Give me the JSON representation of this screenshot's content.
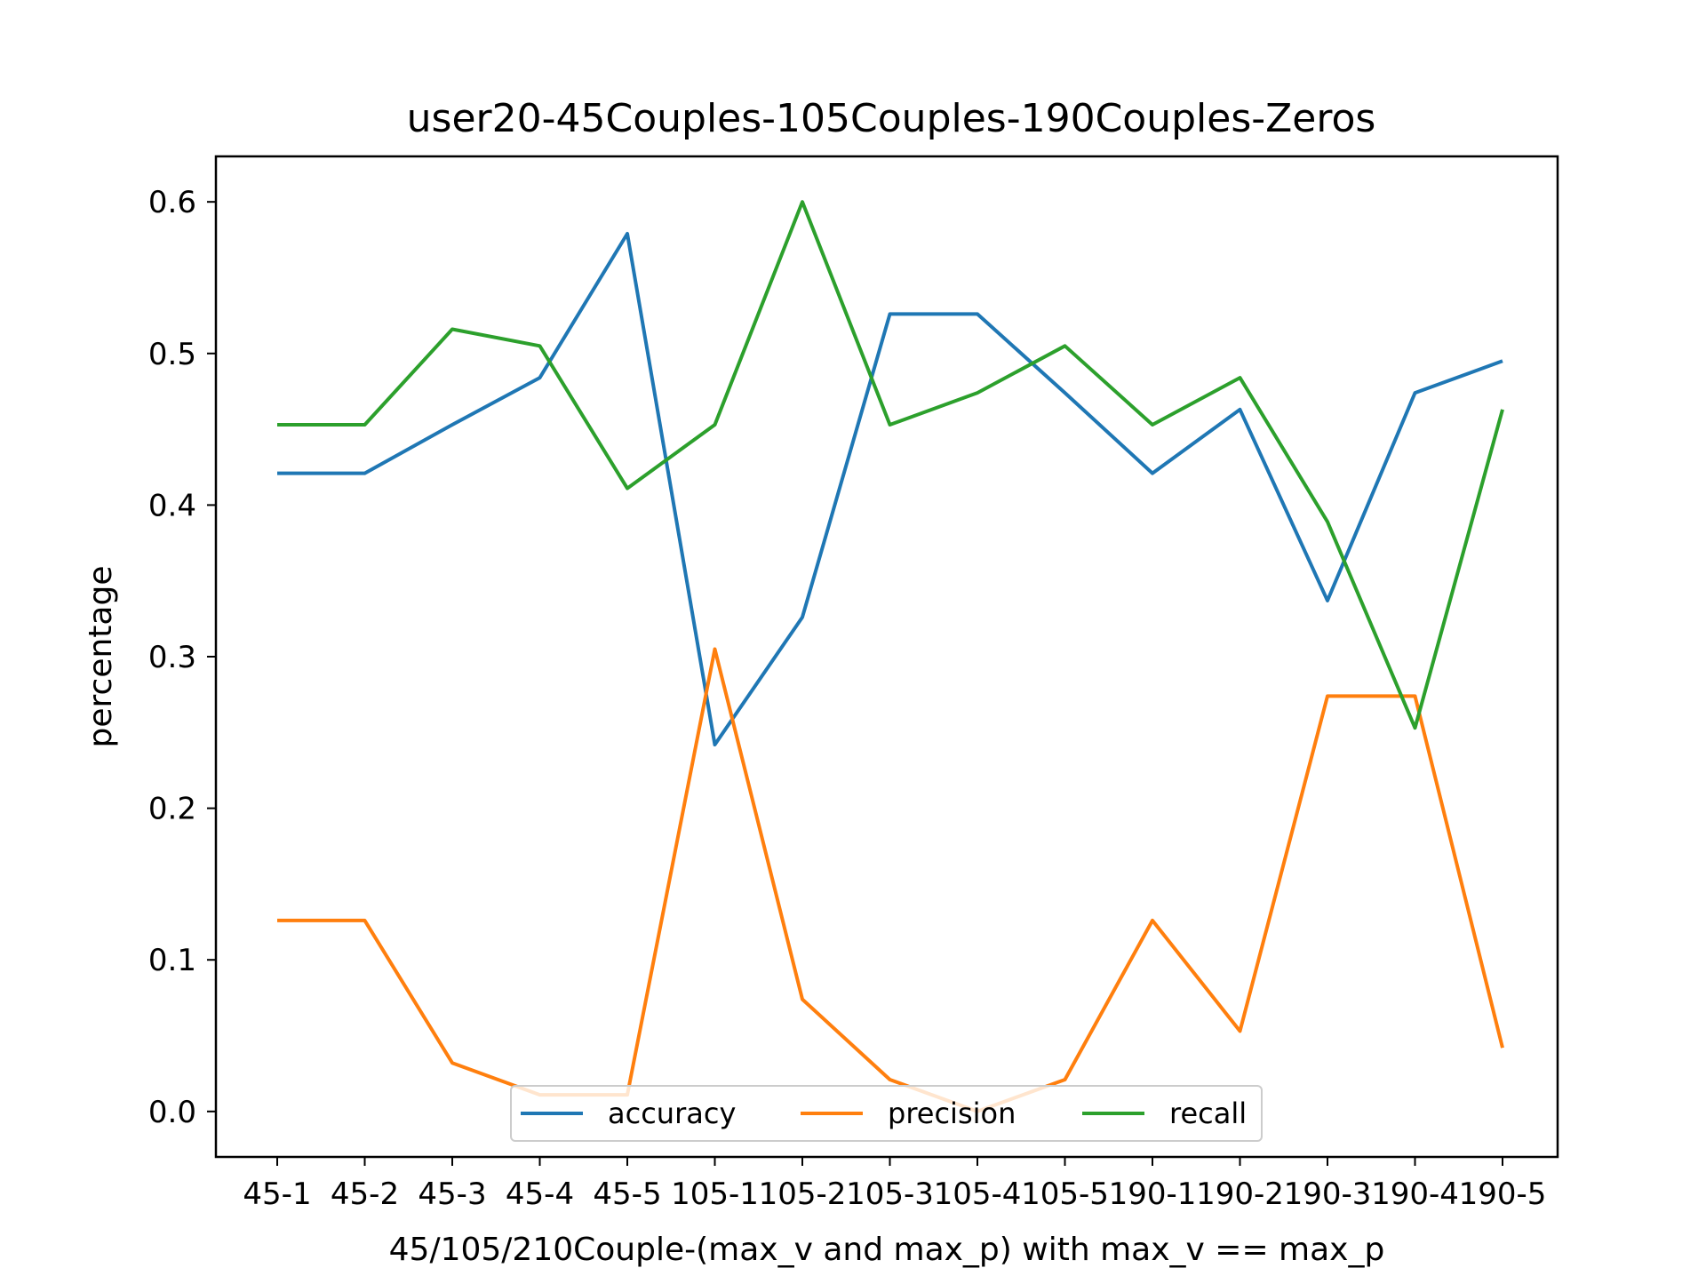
{
  "chart_data": {
    "type": "line",
    "title": "user20-45Couples-105Couples-190Couples-Zeros",
    "xlabel": "45/105/210Couple-(max_v and max_p) with max_v == max_p",
    "ylabel": "percentage",
    "categories": [
      "45-1",
      "45-2",
      "45-3",
      "45-4",
      "45-5",
      "105-1",
      "105-2",
      "105-3",
      "105-4",
      "105-5",
      "190-1",
      "190-2",
      "190-3",
      "190-4",
      "190-5"
    ],
    "ylim": [
      -0.03,
      0.63
    ],
    "yticks": [
      0.0,
      0.1,
      0.2,
      0.3,
      0.4,
      0.5,
      0.6
    ],
    "ytick_labels": [
      "0.0",
      "0.1",
      "0.2",
      "0.3",
      "0.4",
      "0.5",
      "0.6"
    ],
    "grid": false,
    "legend_position": "bottom-center",
    "series": [
      {
        "name": "accuracy",
        "color": "#1f77b4",
        "values": [
          0.421,
          0.421,
          0.453,
          0.484,
          0.579,
          0.242,
          0.326,
          0.526,
          0.526,
          0.474,
          0.421,
          0.463,
          0.337,
          0.474,
          0.495
        ]
      },
      {
        "name": "precision",
        "color": "#ff7f0e",
        "values": [
          0.126,
          0.126,
          0.032,
          0.011,
          0.011,
          0.305,
          0.074,
          0.021,
          0.0,
          0.021,
          0.126,
          0.053,
          0.274,
          0.274,
          0.042
        ]
      },
      {
        "name": "recall",
        "color": "#2ca02c",
        "values": [
          0.453,
          0.453,
          0.516,
          0.505,
          0.411,
          0.453,
          0.6,
          0.453,
          0.474,
          0.505,
          0.453,
          0.484,
          0.389,
          0.253,
          0.463
        ]
      }
    ]
  }
}
